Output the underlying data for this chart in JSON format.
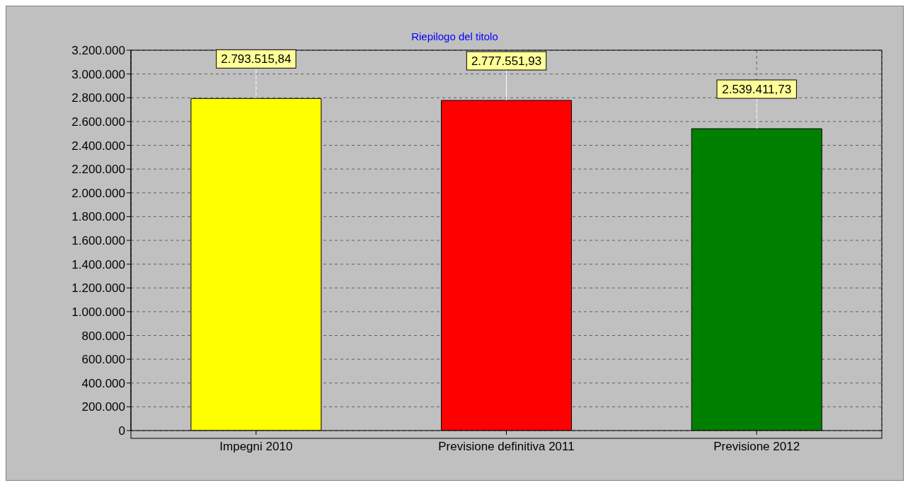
{
  "chart_data": {
    "type": "bar",
    "title": "Riepilogo del titolo",
    "categories": [
      "Impegni 2010",
      "Previsione definitiva 2011",
      "Previsione 2012"
    ],
    "values": [
      2793515.84,
      2777551.93,
      2539411.73
    ],
    "colors": [
      "#ffff00",
      "#ff0000",
      "#008000"
    ],
    "value_labels": [
      "2.793.515,84",
      "2.777.551,93",
      "2.539.411,73"
    ],
    "ylim": [
      0,
      3200000
    ],
    "yticks": [
      {
        "value": 0,
        "label": "0"
      },
      {
        "value": 200000,
        "label": "200.000"
      },
      {
        "value": 400000,
        "label": "400.000"
      },
      {
        "value": 600000,
        "label": "600.000"
      },
      {
        "value": 800000,
        "label": "800.000"
      },
      {
        "value": 1000000,
        "label": "1.000.000"
      },
      {
        "value": 1200000,
        "label": "1.200.000"
      },
      {
        "value": 1400000,
        "label": "1.400.000"
      },
      {
        "value": 1600000,
        "label": "1.600.000"
      },
      {
        "value": 1800000,
        "label": "1.800.000"
      },
      {
        "value": 2000000,
        "label": "2.000.000"
      },
      {
        "value": 2200000,
        "label": "2.200.000"
      },
      {
        "value": 2400000,
        "label": "2.400.000"
      },
      {
        "value": 2600000,
        "label": "2.600.000"
      },
      {
        "value": 2800000,
        "label": "2.800.000"
      },
      {
        "value": 3000000,
        "label": "3.000.000"
      },
      {
        "value": 3200000,
        "label": "3.200.000"
      }
    ],
    "grid": true
  }
}
